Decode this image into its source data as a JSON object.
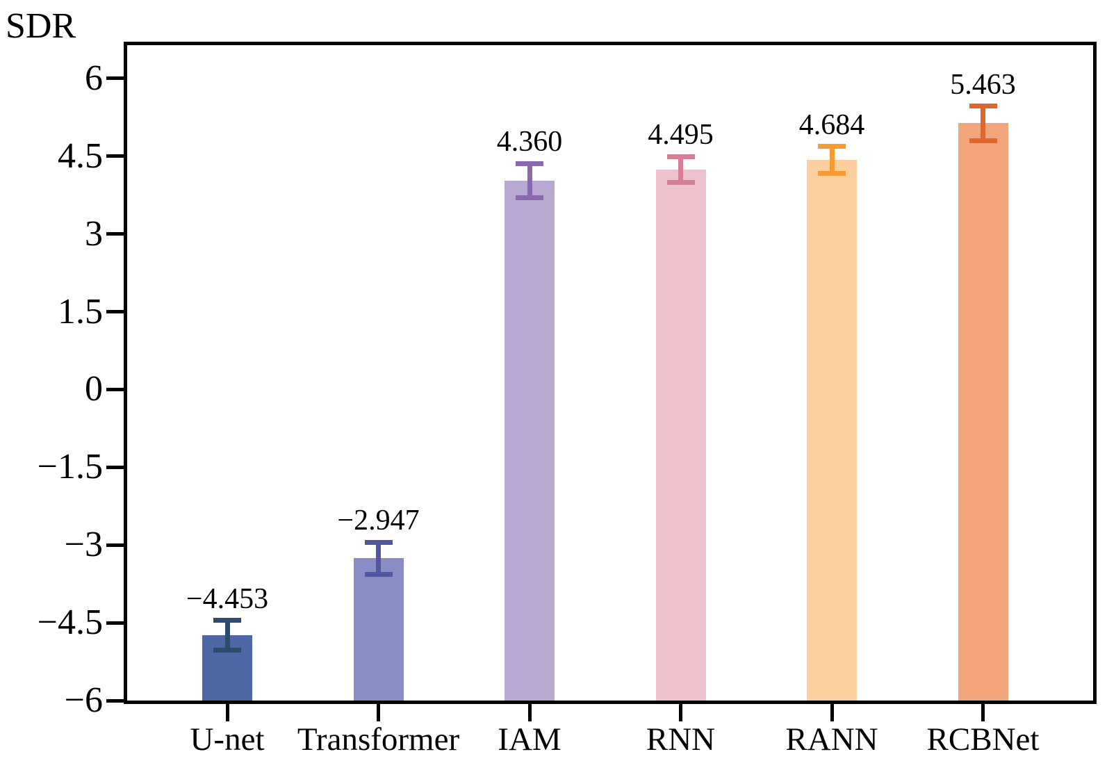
{
  "chart_data": {
    "type": "bar",
    "title": "",
    "xlabel": "",
    "ylabel": "SDR",
    "categories": [
      "U-net",
      "Transformer",
      "IAM",
      "RNN",
      "RANN",
      "RCBNet"
    ],
    "series": [
      {
        "name": "SDR",
        "values": [
          -4.453,
          -2.947,
          4.36,
          4.495,
          4.684,
          5.463
        ],
        "errors": [
          0.29,
          0.31,
          0.33,
          0.25,
          0.26,
          0.33
        ]
      }
    ],
    "value_labels": [
      "−4.453",
      "−2.947",
      "4.360",
      "4.495",
      "4.684",
      "5.463"
    ],
    "value_label_anchor": "top_of_error_bar",
    "bar_colors": [
      "#4c67a3",
      "#8a8dc4",
      "#b7a9d1",
      "#eec2cd",
      "#fccfa0",
      "#f2a47b"
    ],
    "error_bar_colors": [
      "#2e4a6e",
      "#4f57a0",
      "#8a67ae",
      "#d67e95",
      "#f89b33",
      "#e0662b"
    ],
    "yticks": [
      6,
      4.5,
      3,
      1.5,
      0,
      -1.5,
      -3,
      -4.5,
      -6
    ],
    "ytick_labels": [
      "6",
      "4.5",
      "3",
      "1.5",
      "0",
      "−1.5",
      "−3",
      "−4.5",
      "−6"
    ],
    "ylim": [
      -6,
      6.64
    ],
    "grid": false,
    "legend": false,
    "axis_color": "#000000",
    "background_color": "#ffffff"
  }
}
